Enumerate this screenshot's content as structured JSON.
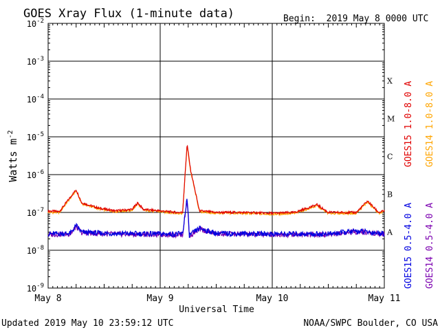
{
  "chart_data": {
    "type": "line",
    "title": "GOES Xray Flux (1-minute data)",
    "begin": "Begin:  2019 May 8 0000 UTC",
    "ylabel": "Watts m",
    "ylabel_sup": "-2",
    "xlabel": "Universal Time",
    "yscale": "log",
    "ylim": [
      1e-09,
      0.01
    ],
    "y_ticks": [
      {
        "base": "10",
        "exp": "-9",
        "value": -9
      },
      {
        "base": "10",
        "exp": "-8",
        "value": -8
      },
      {
        "base": "10",
        "exp": "-7",
        "value": -7
      },
      {
        "base": "10",
        "exp": "-6",
        "value": -6
      },
      {
        "base": "10",
        "exp": "-5",
        "value": -5
      },
      {
        "base": "10",
        "exp": "-4",
        "value": -4
      },
      {
        "base": "10",
        "exp": "-3",
        "value": -3
      },
      {
        "base": "10",
        "exp": "-2",
        "value": -2
      }
    ],
    "x_unit": "days since 2019 May 8 0000 UTC",
    "xlim": [
      0,
      3
    ],
    "x_ticks": [
      {
        "label": "May 8",
        "value": 0
      },
      {
        "label": "May 9",
        "value": 1
      },
      {
        "label": "May 10",
        "value": 2
      },
      {
        "label": "May 11",
        "value": 3
      }
    ],
    "flare_classes": [
      {
        "label": "X",
        "log_center": -3.5
      },
      {
        "label": "M",
        "log_center": -4.5
      },
      {
        "label": "C",
        "log_center": -5.5
      },
      {
        "label": "B",
        "log_center": -6.5
      },
      {
        "label": "A",
        "log_center": -7.5
      }
    ],
    "grid": true,
    "series": [
      {
        "name": "GOES15 1.0-8.0 A",
        "color": "#e00000",
        "x": [
          0,
          0.1,
          0.25,
          0.3,
          0.45,
          0.6,
          0.75,
          0.8,
          0.85,
          1.0,
          1.15,
          1.2,
          1.24,
          1.27,
          1.35,
          1.5,
          1.75,
          2.0,
          2.2,
          2.4,
          2.5,
          2.75,
          2.85,
          2.95,
          3.0
        ],
        "y": [
          1.1e-07,
          1.05e-07,
          4e-07,
          1.8e-07,
          1.3e-07,
          1.1e-07,
          1.2e-07,
          1.8e-07,
          1.2e-07,
          1.1e-07,
          1e-07,
          1e-07,
          6.5e-06,
          1.4e-06,
          1.1e-07,
          1e-07,
          1e-07,
          9.5e-08,
          1e-07,
          1.6e-07,
          1e-07,
          1e-07,
          2e-07,
          1e-07,
          1.1e-07
        ]
      },
      {
        "name": "GOES14 1.0-8.0 A",
        "color": "#ffa500",
        "x": [
          0,
          0.1,
          0.25,
          0.3,
          0.45,
          0.6,
          0.75,
          0.8,
          0.85,
          1.0,
          1.15,
          1.2,
          1.24,
          1.27,
          1.35,
          1.5,
          1.75,
          2.0,
          2.2,
          2.4,
          2.5,
          2.75,
          2.85,
          2.95,
          3.0
        ],
        "y": [
          1e-07,
          1e-07,
          3.8e-07,
          1.7e-07,
          1.25e-07,
          1.05e-07,
          1.15e-07,
          1.7e-07,
          1.15e-07,
          1.05e-07,
          9.5e-08,
          9.5e-08,
          6e-06,
          1.3e-06,
          1.05e-07,
          9.5e-08,
          9.5e-08,
          9e-08,
          9.5e-08,
          1.5e-07,
          9.5e-08,
          9.5e-08,
          1.9e-07,
          9.5e-08,
          1.05e-07
        ]
      },
      {
        "name": "GOES15 0.5-4.0 A",
        "color": "#0000e0",
        "x": [
          0,
          0.2,
          0.25,
          0.3,
          0.5,
          1.0,
          1.2,
          1.24,
          1.26,
          1.35,
          1.5,
          2.0,
          2.5,
          2.75,
          3.0
        ],
        "y": [
          2.7e-08,
          2.8e-08,
          4.5e-08,
          3e-08,
          2.8e-08,
          2.7e-08,
          2.7e-08,
          2.5e-07,
          2.5e-08,
          3.8e-08,
          2.8e-08,
          2.7e-08,
          2.7e-08,
          3.2e-08,
          2.8e-08
        ]
      },
      {
        "name": "GOES14 0.5-4.0 A",
        "color": "#7b00b0",
        "x": [
          0,
          0.2,
          0.25,
          0.3,
          0.5,
          1.0,
          1.2,
          1.24,
          1.26,
          1.35,
          1.5,
          2.0,
          2.5,
          2.75,
          3.0
        ],
        "y": [
          2.6e-08,
          2.7e-08,
          4.2e-08,
          2.9e-08,
          2.7e-08,
          2.6e-08,
          2.6e-08,
          2.2e-07,
          2.4e-08,
          3.6e-08,
          2.7e-08,
          2.6e-08,
          2.6e-08,
          3.1e-08,
          2.7e-08
        ]
      }
    ]
  },
  "footer": {
    "updated": "Updated 2019 May 10 23:59:12 UTC",
    "credit": "NOAA/SWPC Boulder, CO USA"
  }
}
